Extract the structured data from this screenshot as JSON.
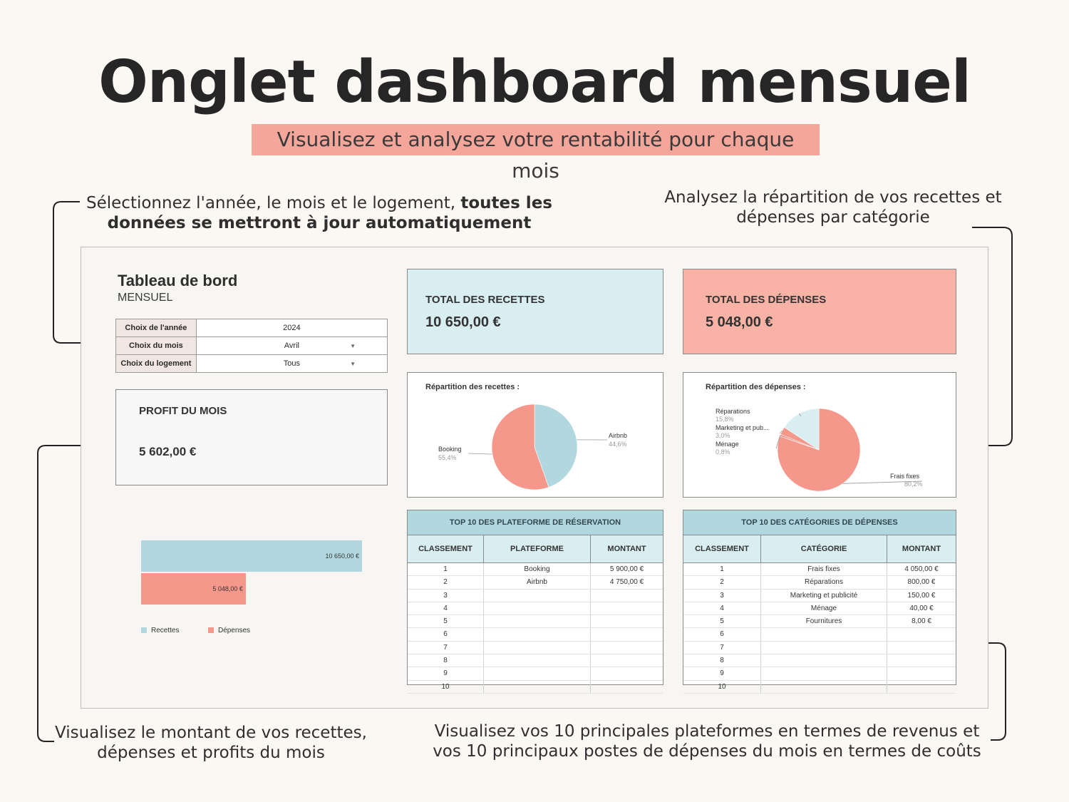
{
  "header": {
    "title": "Onglet dashboard mensuel",
    "subtitle": "Visualisez et analysez votre rentabilité pour chaque mois"
  },
  "notes": {
    "top_left_plain": "Sélectionnez l'année, le mois et le logement, ",
    "top_left_bold_1": "toutes les",
    "top_left_bold_2": "données se mettront à jour automatiquement",
    "top_right_1": "Analysez la répartition de vos recettes et",
    "top_right_2": "dépenses par catégorie",
    "bottom_left_1": "Visualisez le montant de vos recettes,",
    "bottom_left_2": "dépenses et profits du mois",
    "bottom_right_1": "Visualisez vos 10 principales plateformes en termes de revenus et",
    "bottom_right_2": "vos 10 principaux postes de dépenses du mois en termes de coûts"
  },
  "dashboard": {
    "title": "Tableau de bord",
    "subtitle": "MENSUEL",
    "selectors": [
      {
        "label": "Choix de l'année",
        "value": "2024"
      },
      {
        "label": "Choix du mois",
        "value": "Avril"
      },
      {
        "label": "Choix du logement",
        "value": "Tous"
      }
    ],
    "profit": {
      "label": "PROFIT DU MOIS",
      "value": "5 602,00 €"
    },
    "recettes": {
      "label": "TOTAL DES RECETTES",
      "value": "10 650,00 €"
    },
    "depenses": {
      "label": "TOTAL DES DÉPENSES",
      "value": "5 048,00 €"
    },
    "pie_recettes_title": "Répartition des recettes :",
    "pie_depenses_title": "Répartition des dépenses :",
    "top_platforms": {
      "caption": "TOP 10 DES PLATEFORME DE RÉSERVATION",
      "headers": [
        "CLASSEMENT",
        "PLATEFORME",
        "MONTANT"
      ],
      "rows": [
        [
          "1",
          "Booking",
          "5 900,00 €"
        ],
        [
          "2",
          "Airbnb",
          "4 750,00 €"
        ],
        [
          "3",
          "",
          ""
        ],
        [
          "4",
          "",
          ""
        ],
        [
          "5",
          "",
          ""
        ],
        [
          "6",
          "",
          ""
        ],
        [
          "7",
          "",
          ""
        ],
        [
          "8",
          "",
          ""
        ],
        [
          "9",
          "",
          ""
        ],
        [
          "10",
          "",
          ""
        ]
      ]
    },
    "top_categories": {
      "caption": "TOP 10 DES CATÉGORIES DE DÉPENSES",
      "headers": [
        "CLASSEMENT",
        "CATÉGORIE",
        "MONTANT"
      ],
      "rows": [
        [
          "1",
          "Frais fixes",
          "4 050,00 €"
        ],
        [
          "2",
          "Réparations",
          "800,00 €"
        ],
        [
          "3",
          "Marketing et publicité",
          "150,00 €"
        ],
        [
          "4",
          "Ménage",
          "40,00 €"
        ],
        [
          "5",
          "Fournitures",
          "8,00 €"
        ],
        [
          "6",
          "",
          ""
        ],
        [
          "7",
          "",
          ""
        ],
        [
          "8",
          "",
          ""
        ],
        [
          "9",
          "",
          ""
        ],
        [
          "10",
          "",
          ""
        ]
      ]
    }
  },
  "colors": {
    "blue": "#b2d8df",
    "salmon": "#f5978a",
    "kpi_blue": "#d9eef1",
    "kpi_salmon": "#f9b3a6"
  },
  "chart_data": [
    {
      "type": "pie",
      "title": "Répartition des recettes :",
      "series": [
        {
          "name": "Airbnb",
          "value": 44.6,
          "label": "44,6%",
          "color": "#b2d8df"
        },
        {
          "name": "Booking",
          "value": 55.4,
          "label": "55,4%",
          "color": "#f5978a"
        }
      ]
    },
    {
      "type": "pie",
      "title": "Répartition des dépenses :",
      "series": [
        {
          "name": "Frais fixes",
          "value": 80.2,
          "label": "80,2%",
          "color": "#f5978a"
        },
        {
          "name": "Ménage",
          "value": 0.8,
          "label": "0,8%",
          "color": "#f5978a"
        },
        {
          "name": "Marketing et pub...",
          "value": 3.0,
          "label": "3,0%",
          "color": "#f5978a"
        },
        {
          "name": "Réparations",
          "value": 15.8,
          "label": "15,8%",
          "color": "#d9eef1"
        }
      ]
    },
    {
      "type": "bar",
      "categories": [
        "Recettes",
        "Dépenses"
      ],
      "values": [
        10650,
        5048
      ],
      "labels": [
        "10 650,00 €",
        "5 048,00 €"
      ],
      "colors": [
        "#b2d8df",
        "#f5978a"
      ],
      "legend": [
        "Recettes",
        "Dépenses"
      ],
      "xlim": [
        0,
        10650
      ]
    }
  ]
}
